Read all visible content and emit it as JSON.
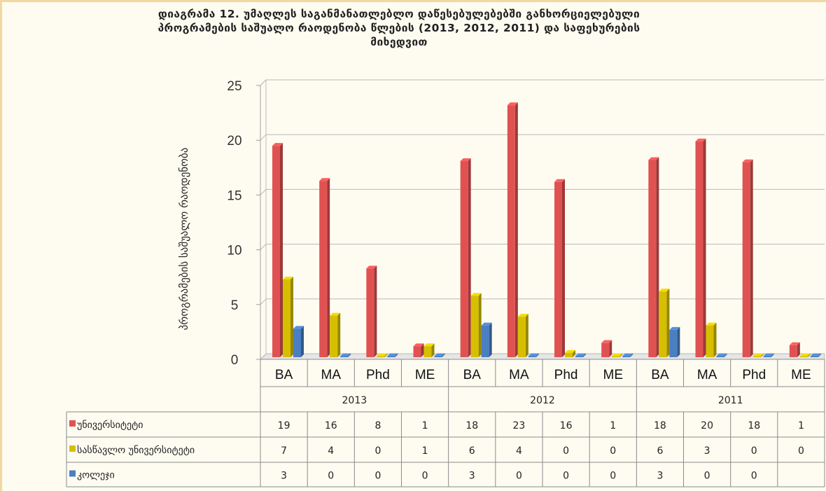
{
  "title_lines": [
    "დიაგრამა 12. უმაღლეს საგანმანათლებლო დაწესებულებებში განხორციელებული",
    "პროგრამების საშუალო რაოდენობა წლების (2013, 2012, 2011) და საფეხურების",
    "მიხედვით"
  ],
  "chart_data": {
    "type": "bar",
    "ylabel": "პროგრამების საშუალო რაოდენობა",
    "ylim": [
      0,
      25
    ],
    "yticks": [
      0,
      5,
      10,
      15,
      20,
      25
    ],
    "groups": [
      {
        "year": "2013",
        "categories": [
          "BA",
          "MA",
          "Phd",
          "ME"
        ]
      },
      {
        "year": "2012",
        "categories": [
          "BA",
          "MA",
          "Phd",
          "ME"
        ]
      },
      {
        "year": "2011",
        "categories": [
          "BA",
          "MA",
          "Phd",
          "ME"
        ]
      }
    ],
    "series": [
      {
        "name": "უნივერსიტეტი",
        "color": "#e05252",
        "plot_values": [
          19.3,
          16.1,
          8.1,
          1.0,
          17.9,
          23.0,
          16.0,
          1.3,
          18.0,
          19.7,
          17.8,
          1.1
        ],
        "table_values": [
          "19",
          "16",
          "8",
          "1",
          "18",
          "23",
          "16",
          "1",
          "18",
          "20",
          "18",
          "1"
        ]
      },
      {
        "name": "სასწავლო უნივერსიტეტი",
        "color": "#d6bf00",
        "plot_values": [
          7.1,
          3.8,
          0,
          1.0,
          5.6,
          3.7,
          0.4,
          0,
          6.0,
          2.9,
          0,
          0
        ],
        "table_values": [
          "7",
          "4",
          "0",
          "1",
          "6",
          "4",
          "0",
          "0",
          "6",
          "3",
          "0",
          "0"
        ]
      },
      {
        "name": "კოლეჯი",
        "color": "#4a7fc1",
        "plot_values": [
          2.6,
          0,
          0,
          0,
          2.9,
          0,
          0,
          0,
          2.5,
          0,
          0,
          0
        ],
        "table_values": [
          "3",
          "0",
          "0",
          "0",
          "3",
          "0",
          "0",
          "0",
          "3",
          "0",
          "0",
          ""
        ]
      }
    ],
    "grid": true,
    "legend": "table-rows"
  }
}
